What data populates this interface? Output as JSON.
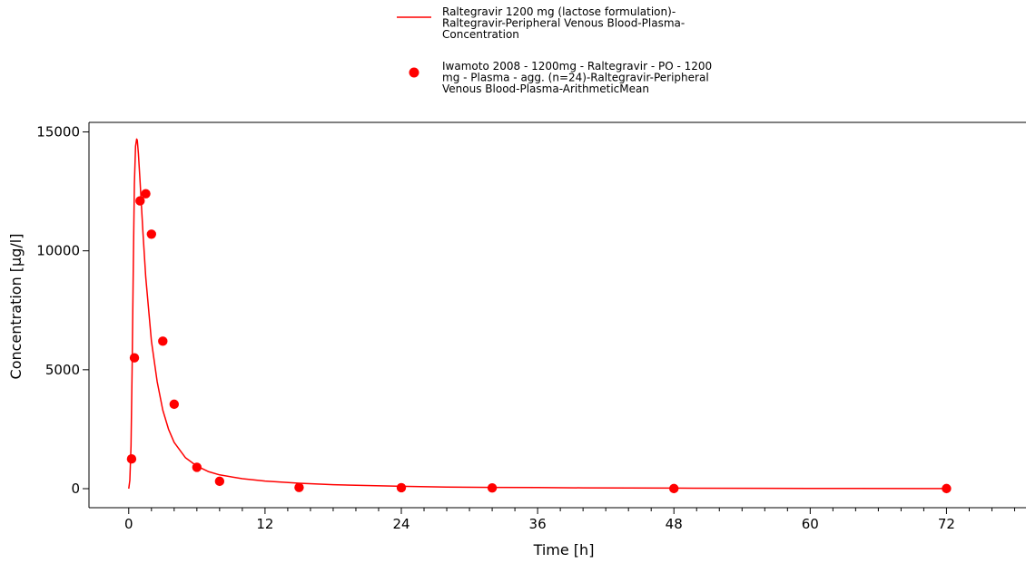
{
  "chart_data": {
    "type": "line",
    "xlabel": "Time [h]",
    "ylabel": "Concentration [µg/l]",
    "xlim": [
      -3.5,
      79
    ],
    "ylim": [
      -800,
      15400
    ],
    "xticks": [
      0,
      12,
      24,
      36,
      48,
      60,
      72
    ],
    "yticks": [
      0,
      5000,
      10000,
      15000
    ],
    "x_minor_step": 2,
    "grid": false,
    "legend_position": "top-center",
    "series": [
      {
        "name": "Raltegravir 1200 mg (lactose formulation)-Raltegravir-Peripheral Venous Blood-Plasma-Concentration",
        "legend_lines": [
          "Raltegravir 1200 mg (lactose formulation)-",
          "Raltegravir-Peripheral Venous Blood-Plasma-",
          "Concentration"
        ],
        "kind": "line",
        "color": "#ff0000",
        "x": [
          0,
          0.1,
          0.2,
          0.3,
          0.4,
          0.5,
          0.6,
          0.7,
          0.75,
          0.85,
          1.0,
          1.25,
          1.5,
          2,
          2.5,
          3,
          3.5,
          4,
          5,
          6,
          7,
          8,
          10,
          12,
          15,
          18,
          20,
          24,
          28,
          32,
          36,
          40,
          48,
          56,
          60,
          64,
          72
        ],
        "y": [
          0,
          350,
          1800,
          5000,
          9300,
          12800,
          14400,
          14700,
          14650,
          14100,
          12900,
          10800,
          8900,
          6200,
          4500,
          3300,
          2500,
          1950,
          1300,
          950,
          720,
          580,
          420,
          320,
          230,
          170,
          140,
          100,
          70,
          55,
          45,
          35,
          22,
          15,
          12,
          10,
          6
        ]
      },
      {
        "name": "Iwamoto 2008 - 1200mg - Raltegravir - PO - 1200 mg - Plasma - agg. (n=24)-Raltegravir-Peripheral Venous Blood-Plasma-ArithmeticMean",
        "legend_lines": [
          "Iwamoto 2008 - 1200mg - Raltegravir - PO - 1200",
          "mg - Plasma - agg. (n=24)-Raltegravir-Peripheral",
          "Venous Blood-Plasma-ArithmeticMean"
        ],
        "kind": "scatter",
        "color": "#ff0000",
        "x": [
          0.25,
          0.5,
          1,
          1.5,
          2,
          3,
          4,
          6,
          8,
          15,
          24,
          32,
          48,
          72
        ],
        "y": [
          1250,
          5500,
          12100,
          12400,
          10700,
          6200,
          3550,
          900,
          310,
          50,
          40,
          30,
          5,
          5
        ]
      }
    ]
  }
}
